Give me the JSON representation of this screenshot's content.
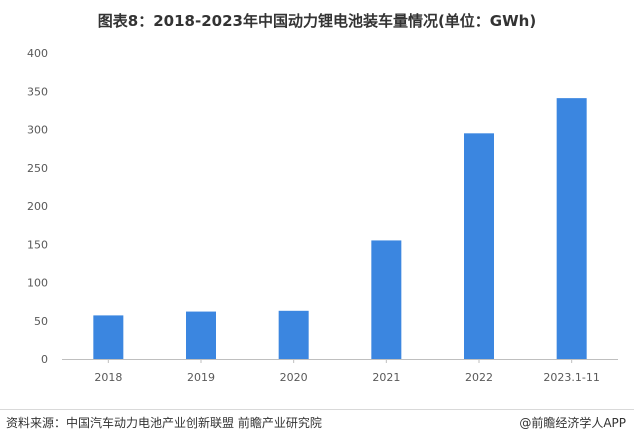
{
  "title": "图表8：2018-2023年中国动力锂电池装车量情况(单位：GWh)",
  "source": "资料来源：中国汽车动力电池产业创新联盟 前瞻产业研究院",
  "credit": "@前瞻经济学人APP",
  "colors": {
    "bar": "#3b86e0",
    "axis": "#bfbfbf",
    "text": "#595959"
  },
  "chart_data": {
    "type": "bar",
    "title": "图表8：2018-2023年中国动力锂电池装车量情况(单位：GWh)",
    "xlabel": "",
    "ylabel": "",
    "categories": [
      "2018",
      "2019",
      "2020",
      "2021",
      "2022",
      "2023.1-11"
    ],
    "values": [
      57,
      62,
      63,
      155,
      295,
      341
    ],
    "ylim": [
      0,
      400
    ],
    "yticks": [
      0,
      50,
      100,
      150,
      200,
      250,
      300,
      350,
      400
    ],
    "grid": false,
    "legend": "none"
  }
}
